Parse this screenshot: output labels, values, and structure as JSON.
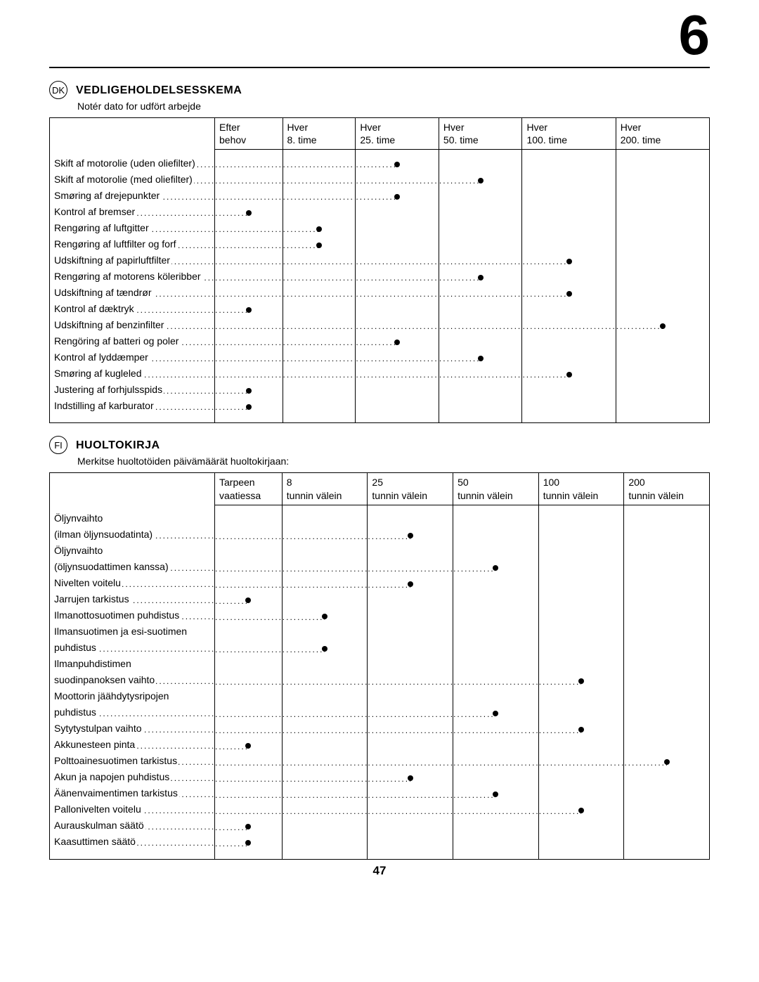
{
  "page": {
    "chapter_number": "6",
    "footer_page_number": "47"
  },
  "tables": [
    {
      "lang_code": "DK",
      "title": "VEDLIGEHOLDELSESSKEMA",
      "subtitle": "Notér dato for udfört arbejde",
      "columns": [
        "Efter behov",
        "Hver 8. time",
        "Hver 25. time",
        "Hver 50. time",
        "Hver 100. time",
        "Hver 200. time"
      ],
      "rows": [
        {
          "label": "Skift af motorolie (uden oliefilter)",
          "marks": [
            0,
            0,
            1,
            0,
            0,
            0
          ]
        },
        {
          "label": "Skift af motorolie (med oliefilter)",
          "marks": [
            0,
            0,
            0,
            1,
            0,
            0
          ]
        },
        {
          "label": "Smøring af drejepunkter",
          "marks": [
            0,
            0,
            1,
            0,
            0,
            0
          ]
        },
        {
          "label": "Kontrol af bremser",
          "marks": [
            1,
            0,
            0,
            0,
            0,
            0
          ]
        },
        {
          "label": "Rengøring af luftgitter",
          "marks": [
            0,
            1,
            0,
            0,
            0,
            0
          ]
        },
        {
          "label": "Rengøring af luftfilter og forf",
          "marks": [
            0,
            1,
            0,
            0,
            0,
            0
          ]
        },
        {
          "label": "Udskiftning af papirluftfilter",
          "marks": [
            0,
            0,
            0,
            0,
            1,
            0
          ]
        },
        {
          "label": "Rengøring af motorens köleribber",
          "marks": [
            0,
            0,
            0,
            1,
            0,
            0
          ]
        },
        {
          "label": "Udskiftning af tændrør",
          "marks": [
            0,
            0,
            0,
            0,
            1,
            0
          ]
        },
        {
          "label": "Kontrol af dæktryk",
          "marks": [
            1,
            0,
            0,
            0,
            0,
            0
          ]
        },
        {
          "label": "Udskiftning af benzinfilter",
          "marks": [
            0,
            0,
            0,
            0,
            0,
            1
          ]
        },
        {
          "label": "Rengöring af batteri og poler",
          "marks": [
            0,
            0,
            1,
            0,
            0,
            0
          ]
        },
        {
          "label": "Kontrol af lyddæmper",
          "marks": [
            0,
            0,
            0,
            1,
            0,
            0
          ]
        },
        {
          "label": "Smøring af kugleled",
          "marks": [
            0,
            0,
            0,
            0,
            1,
            0
          ]
        },
        {
          "label": "Justering af forhjulsspids",
          "marks": [
            1,
            0,
            0,
            0,
            0,
            0
          ]
        },
        {
          "label": "Indstilling af karburator",
          "marks": [
            1,
            0,
            0,
            0,
            0,
            0
          ]
        }
      ]
    },
    {
      "lang_code": "FI",
      "title": "HUOLTOKIRJA",
      "subtitle": "Merkitse huoltotöiden päivämäärät huoltokirjaan:",
      "columns": [
        "Tarpeen vaatiessa",
        "8 tunnin välein",
        "25 tunnin välein",
        "50 tunnin välein",
        "100 tunnin välein",
        "200 tunnin välein"
      ],
      "rows": [
        {
          "label": "Öljynvaihto",
          "marks": null
        },
        {
          "label": "(ilman öljynsuodatinta)",
          "marks": [
            0,
            0,
            1,
            0,
            0,
            0
          ]
        },
        {
          "label": "Öljynvaihto",
          "marks": null
        },
        {
          "label": "(öljynsuodattimen kanssa)",
          "marks": [
            0,
            0,
            0,
            1,
            0,
            0
          ]
        },
        {
          "label": "Nivelten voitelu",
          "marks": [
            0,
            0,
            1,
            0,
            0,
            0
          ]
        },
        {
          "label": "Jarrujen tarkistus",
          "marks": [
            1,
            0,
            0,
            0,
            0,
            0
          ]
        },
        {
          "label": "Ilmanottosuotimen puhdistus",
          "marks": [
            0,
            1,
            0,
            0,
            0,
            0
          ]
        },
        {
          "label": "Ilmansuotimen ja esi-suotimen",
          "marks": null
        },
        {
          "label": "puhdistus",
          "marks": [
            0,
            1,
            0,
            0,
            0,
            0
          ]
        },
        {
          "label": "Ilmanpuhdistimen",
          "marks": null
        },
        {
          "label": "suodinpanoksen vaihto",
          "marks": [
            0,
            0,
            0,
            0,
            1,
            0
          ]
        },
        {
          "label": "Moottorin jäähdytysripojen",
          "marks": null
        },
        {
          "label": "puhdistus",
          "marks": [
            0,
            0,
            0,
            1,
            0,
            0
          ]
        },
        {
          "label": "Sytytystulpan vaihto",
          "marks": [
            0,
            0,
            0,
            0,
            1,
            0
          ]
        },
        {
          "label": "Akkunesteen pinta",
          "marks": [
            1,
            0,
            0,
            0,
            0,
            0
          ]
        },
        {
          "label": "Polttoainesuotimen tarkistus",
          "marks": [
            0,
            0,
            0,
            0,
            0,
            1
          ]
        },
        {
          "label": "Akun ja napojen puhdistus",
          "marks": [
            0,
            0,
            1,
            0,
            0,
            0
          ]
        },
        {
          "label": "Äänenvaimentimen tarkistus",
          "marks": [
            0,
            0,
            0,
            1,
            0,
            0
          ]
        },
        {
          "label": "Pallonivelten voitelu",
          "marks": [
            0,
            0,
            0,
            0,
            1,
            0
          ]
        },
        {
          "label": "Aurauskulman säätö",
          "marks": [
            1,
            0,
            0,
            0,
            0,
            0
          ]
        },
        {
          "label": "Kaasuttimen säätö",
          "marks": [
            1,
            0,
            0,
            0,
            0,
            0
          ]
        }
      ]
    }
  ]
}
